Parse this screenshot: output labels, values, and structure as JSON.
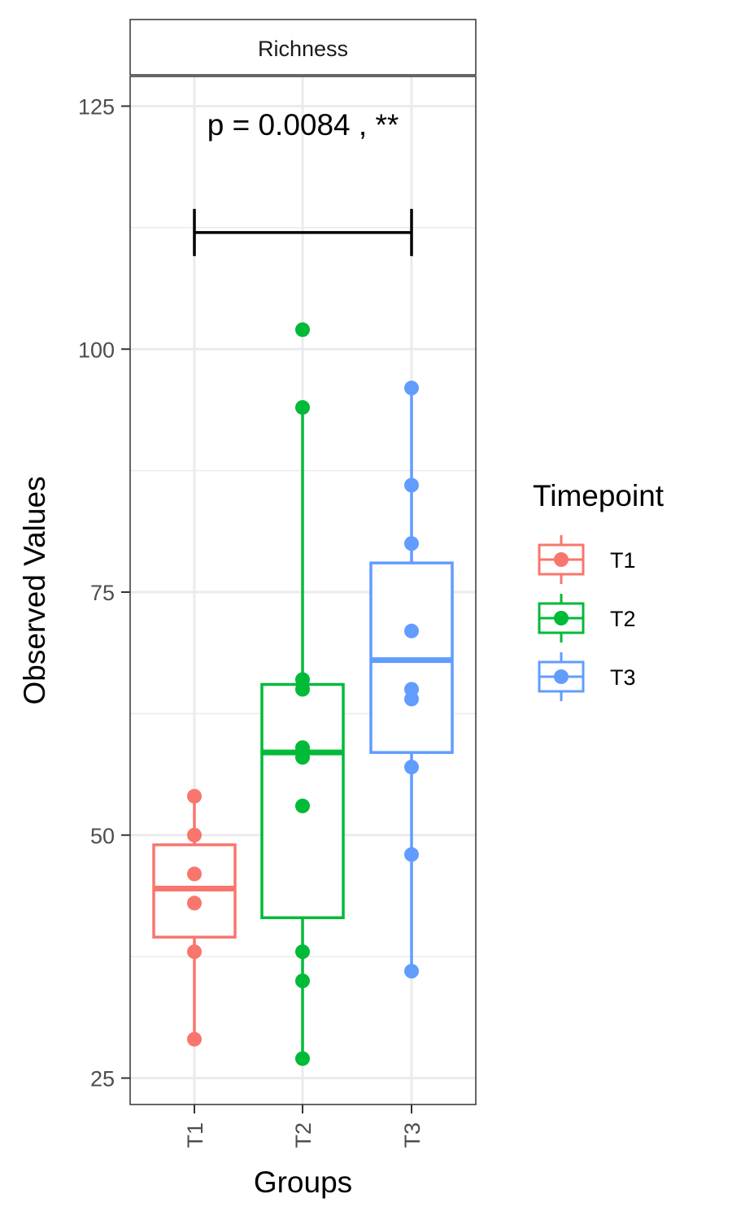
{
  "chart_data": {
    "type": "box",
    "facet_label": "Richness",
    "xlabel": "Groups",
    "ylabel": "Observed Values",
    "categories": [
      "T1",
      "T2",
      "T3"
    ],
    "ylim": [
      22,
      128
    ],
    "yticks": [
      25,
      50,
      75,
      100,
      125
    ],
    "yticks_minor": [
      37.5,
      62.5,
      87.5,
      112.5
    ],
    "grid": true,
    "legend": {
      "title": "Timepoint",
      "position": "right",
      "items": [
        "T1",
        "T2",
        "T3"
      ]
    },
    "series": [
      {
        "name": "T1",
        "color": "#F8766D",
        "box": {
          "lower": 39.5,
          "q1": 39.5,
          "median": 44.5,
          "q3": 49,
          "min": 29,
          "max": 54
        },
        "points": [
          54,
          50,
          46,
          43,
          38,
          29
        ]
      },
      {
        "name": "T2",
        "color": "#00BA38",
        "box": {
          "q1": 41.5,
          "median": 58.5,
          "q3": 65.5,
          "min": 27,
          "max": 94
        },
        "points": [
          102,
          94,
          66,
          65,
          59,
          58,
          53,
          38,
          35,
          27
        ]
      },
      {
        "name": "T3",
        "color": "#619CFF",
        "box": {
          "q1": 58.5,
          "median": 68,
          "q3": 78,
          "min": 36,
          "max": 96
        },
        "points": [
          96,
          86,
          80,
          71,
          65,
          64,
          57,
          48,
          36
        ]
      }
    ],
    "comparison": {
      "from": "T1",
      "to": "T3",
      "y": 112,
      "label": "p = 0.0084 , **"
    }
  }
}
